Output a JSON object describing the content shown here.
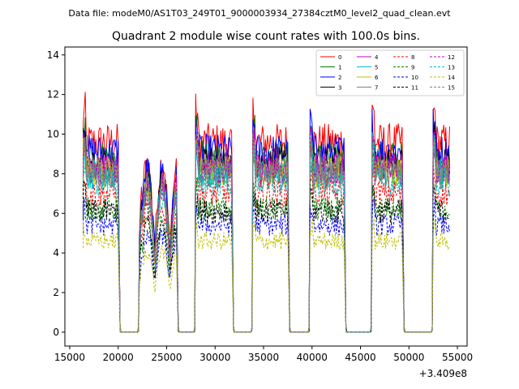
{
  "suptitle": "Data file: modeM0/AS1T03_249T01_9000003934_27384cztM0_level2_quad_clean.evt",
  "chart_data": {
    "type": "line",
    "title": "Quadrant 2 module wise count rates with 100.0s bins.",
    "xlabel": "",
    "ylabel": "",
    "x_offset_label": "+3.409e8",
    "xlim": [
      14500,
      56000
    ],
    "ylim": [
      -0.7,
      14.4
    ],
    "xticks": [
      15000,
      20000,
      25000,
      30000,
      35000,
      40000,
      45000,
      50000,
      55000
    ],
    "xtick_labels": [
      "15000",
      "20000",
      "25000",
      "30000",
      "35000",
      "40000",
      "45000",
      "50000",
      "55000"
    ],
    "yticks": [
      0,
      2,
      4,
      6,
      8,
      10,
      12,
      14
    ],
    "ytick_labels": [
      "0",
      "2",
      "4",
      "6",
      "8",
      "10",
      "12",
      "14"
    ],
    "grid": false,
    "legend_position": "top-right",
    "legend_columns": 4,
    "bin_width": 100,
    "gti_segments": [
      [
        16400,
        20000
      ],
      [
        22200,
        26000
      ],
      [
        28000,
        31700
      ],
      [
        33900,
        37500
      ],
      [
        39800,
        43300
      ],
      [
        46200,
        49300
      ],
      [
        52500,
        54200
      ]
    ],
    "series": [
      {
        "name": "0",
        "color": "#ff0000",
        "dash": "solid",
        "level": 9.6
      },
      {
        "name": "1",
        "color": "#008000",
        "dash": "solid",
        "level": 8.8
      },
      {
        "name": "2",
        "color": "#0000ff",
        "dash": "solid",
        "level": 9.1
      },
      {
        "name": "3",
        "color": "#000000",
        "dash": "solid",
        "level": 8.5
      },
      {
        "name": "4",
        "color": "#c000c0",
        "dash": "solid",
        "level": 8.3
      },
      {
        "name": "5",
        "color": "#00bfbf",
        "dash": "solid",
        "level": 8.0
      },
      {
        "name": "6",
        "color": "#bfbf00",
        "dash": "solid",
        "level": 8.1
      },
      {
        "name": "7",
        "color": "#808080",
        "dash": "solid",
        "level": 8.2
      },
      {
        "name": "8",
        "color": "#ff0000",
        "dash": "dashed",
        "level": 7.0
      },
      {
        "name": "9",
        "color": "#008000",
        "dash": "dashed",
        "level": 6.2
      },
      {
        "name": "10",
        "color": "#0000ff",
        "dash": "dashed",
        "level": 5.4
      },
      {
        "name": "11",
        "color": "#000000",
        "dash": "dashed",
        "level": 6.1
      },
      {
        "name": "12",
        "color": "#c000c0",
        "dash": "dashed",
        "level": 8.2
      },
      {
        "name": "13",
        "color": "#00bfbf",
        "dash": "dashed",
        "level": 7.6
      },
      {
        "name": "14",
        "color": "#bfbf00",
        "dash": "dashed",
        "level": 4.6
      },
      {
        "name": "15",
        "color": "#808080",
        "dash": "dashed",
        "level": 8.0
      }
    ]
  }
}
